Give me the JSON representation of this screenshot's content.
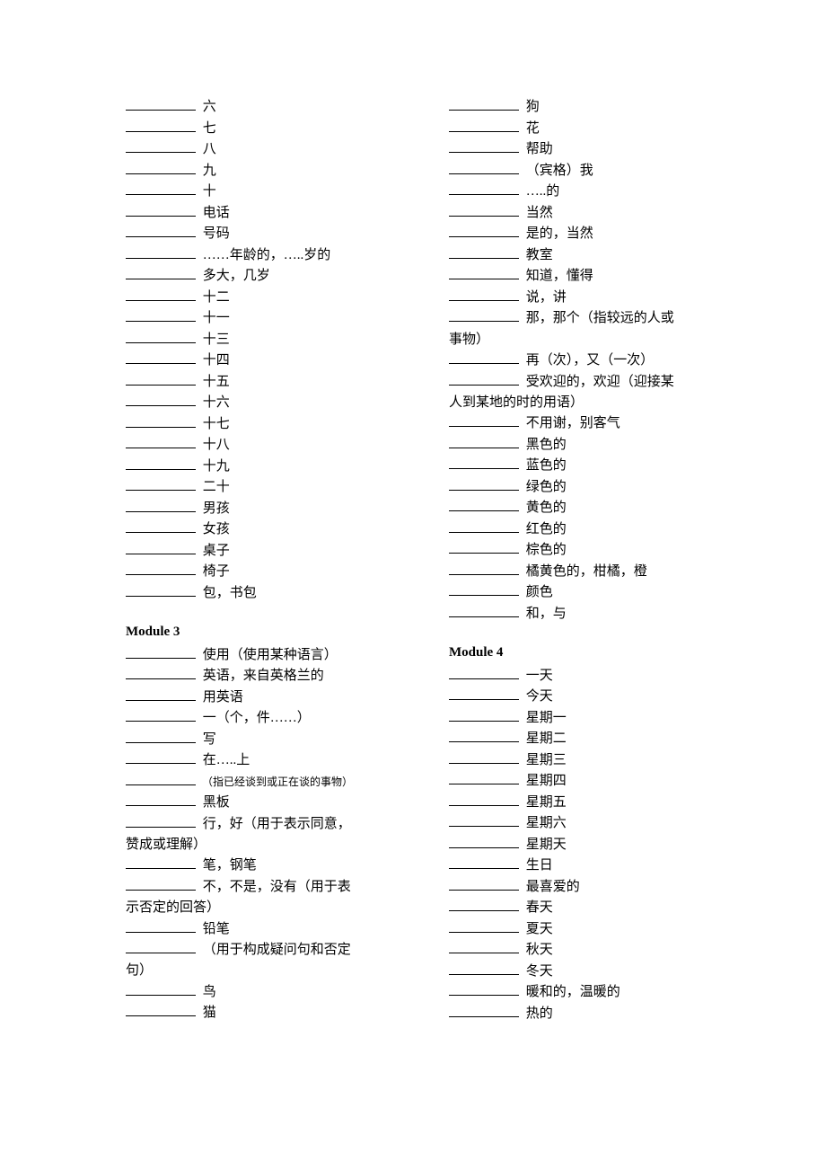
{
  "left": [
    {
      "t": "entry",
      "text": "六"
    },
    {
      "t": "entry",
      "text": "七"
    },
    {
      "t": "entry",
      "text": "八"
    },
    {
      "t": "entry",
      "text": "九"
    },
    {
      "t": "entry",
      "text": "十"
    },
    {
      "t": "entry",
      "text": "电话"
    },
    {
      "t": "entry",
      "text": "号码"
    },
    {
      "t": "entry",
      "text": "……年龄的，…..岁的"
    },
    {
      "t": "entry",
      "text": "多大，几岁"
    },
    {
      "t": "entry",
      "text": "十二"
    },
    {
      "t": "entry",
      "text": "十一"
    },
    {
      "t": "entry",
      "text": "十三"
    },
    {
      "t": "entry",
      "text": "十四"
    },
    {
      "t": "entry",
      "text": "十五"
    },
    {
      "t": "entry",
      "text": "十六"
    },
    {
      "t": "entry",
      "text": "十七"
    },
    {
      "t": "entry",
      "text": "十八"
    },
    {
      "t": "entry",
      "text": "十九"
    },
    {
      "t": "entry",
      "text": "二十"
    },
    {
      "t": "entry",
      "text": "男孩"
    },
    {
      "t": "entry",
      "text": "女孩"
    },
    {
      "t": "entry",
      "text": "桌子"
    },
    {
      "t": "entry",
      "text": "椅子"
    },
    {
      "t": "entry",
      "text": "包，书包"
    },
    {
      "t": "spacer"
    },
    {
      "t": "heading",
      "text": "Module 3"
    },
    {
      "t": "entry",
      "text": "使用（使用某种语言）"
    },
    {
      "t": "entry",
      "text": "英语，来自英格兰的"
    },
    {
      "t": "entry",
      "text": "用英语"
    },
    {
      "t": "entry",
      "text": "一（个，件……）"
    },
    {
      "t": "entry",
      "text": "写"
    },
    {
      "t": "entry",
      "text": "在…..上"
    },
    {
      "t": "entry-small",
      "text": "（指已经谈到或正在谈的事物）"
    },
    {
      "t": "entry",
      "text": "黑板"
    },
    {
      "t": "entry-wrap",
      "text": "行，好（用于表示同意，",
      "cont": "赞成或理解）"
    },
    {
      "t": "entry",
      "text": "笔，钢笔"
    },
    {
      "t": "entry-wrap",
      "text": "不，不是，没有（用于表",
      "cont": "示否定的回答）"
    },
    {
      "t": "entry",
      "text": "铅笔"
    },
    {
      "t": "entry-wrap",
      "text": "（用于构成疑问句和否定",
      "cont": "句）"
    },
    {
      "t": "entry",
      "text": "鸟"
    },
    {
      "t": "entry",
      "text": "猫"
    }
  ],
  "right": [
    {
      "t": "entry",
      "text": "狗"
    },
    {
      "t": "entry",
      "text": "花"
    },
    {
      "t": "entry",
      "text": "帮助"
    },
    {
      "t": "entry",
      "text": "（宾格）我"
    },
    {
      "t": "entry",
      "text": "…..的"
    },
    {
      "t": "entry",
      "text": "当然"
    },
    {
      "t": "entry",
      "text": "是的，当然"
    },
    {
      "t": "entry",
      "text": "教室"
    },
    {
      "t": "entry",
      "text": "知道，懂得"
    },
    {
      "t": "entry",
      "text": "说，讲"
    },
    {
      "t": "entry-wrap",
      "text": "那，那个（指较远的人或",
      "cont": "事物）"
    },
    {
      "t": "entry",
      "text": "再（次），又（一次）"
    },
    {
      "t": "entry-wrap",
      "text": "受欢迎的，欢迎（迎接某",
      "cont": "人到某地的时的用语）"
    },
    {
      "t": "entry",
      "text": "不用谢，别客气"
    },
    {
      "t": "entry",
      "text": "黑色的"
    },
    {
      "t": "entry",
      "text": "蓝色的"
    },
    {
      "t": "entry",
      "text": "绿色的"
    },
    {
      "t": "entry",
      "text": "黄色的"
    },
    {
      "t": "entry",
      "text": "红色的"
    },
    {
      "t": "entry",
      "text": "棕色的"
    },
    {
      "t": "entry",
      "text": "橘黄色的，柑橘，橙"
    },
    {
      "t": "entry",
      "text": "颜色"
    },
    {
      "t": "entry",
      "text": "和，与"
    },
    {
      "t": "spacer"
    },
    {
      "t": "heading",
      "text": "Module 4"
    },
    {
      "t": "entry",
      "text": "一天"
    },
    {
      "t": "entry",
      "text": "今天"
    },
    {
      "t": "entry",
      "text": "星期一"
    },
    {
      "t": "entry",
      "text": "星期二"
    },
    {
      "t": "entry",
      "text": "星期三"
    },
    {
      "t": "entry",
      "text": "星期四"
    },
    {
      "t": "entry",
      "text": "星期五"
    },
    {
      "t": "entry",
      "text": "星期六"
    },
    {
      "t": "entry",
      "text": "星期天"
    },
    {
      "t": "entry",
      "text": "生日"
    },
    {
      "t": "entry",
      "text": "最喜爱的"
    },
    {
      "t": "entry",
      "text": "春天"
    },
    {
      "t": "entry",
      "text": "夏天"
    },
    {
      "t": "entry",
      "text": "秋天"
    },
    {
      "t": "entry",
      "text": "冬天"
    },
    {
      "t": "entry",
      "text": "暖和的，温暖的"
    },
    {
      "t": "entry",
      "text": "热的"
    }
  ]
}
